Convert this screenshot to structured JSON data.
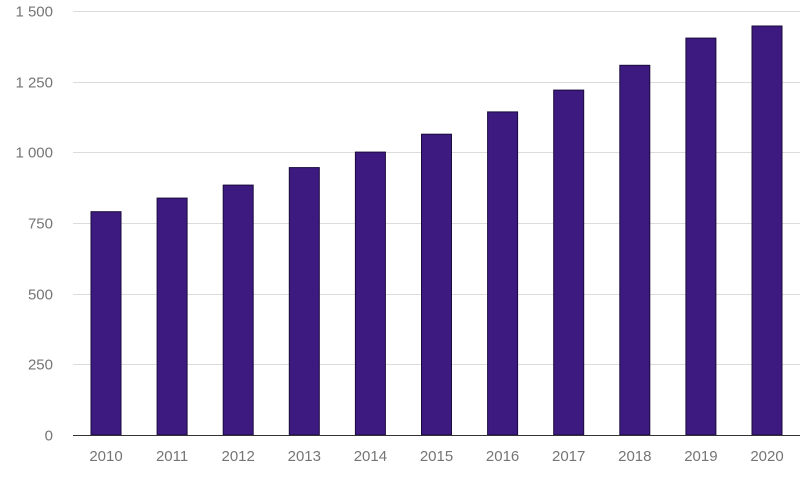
{
  "chart_data": {
    "type": "bar",
    "categories": [
      "2010",
      "2011",
      "2012",
      "2013",
      "2014",
      "2015",
      "2016",
      "2017",
      "2018",
      "2019",
      "2020"
    ],
    "series": [
      {
        "values": [
          790,
          838,
          884,
          946,
          1001,
          1064,
          1143,
          1220,
          1308,
          1404,
          1447
        ]
      }
    ],
    "ylim": [
      0,
      1500
    ],
    "yticks": [
      0,
      250,
      500,
      750,
      1000,
      1250,
      1500
    ],
    "ytick_labels": [
      "0",
      "250",
      "500",
      "750",
      "1 000",
      "1 250",
      "1 500"
    ],
    "title": "",
    "xlabel": "",
    "ylabel": "",
    "grid": true,
    "legend": "none",
    "colors": {
      "bar": "#3d1a80",
      "bar_border": "#1a0b3d",
      "grid": "#dcdcdc",
      "axis": "#333333",
      "tick_label": "#757575"
    }
  }
}
